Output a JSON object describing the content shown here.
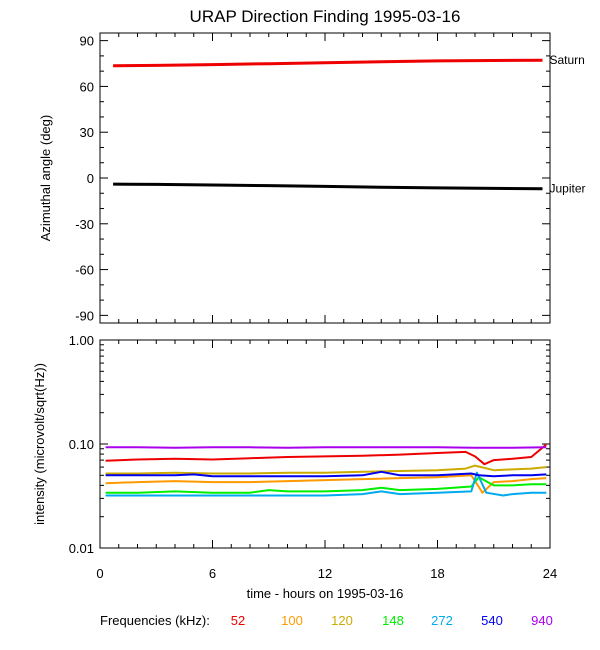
{
  "figure": {
    "title": "URAP Direction Finding  1995-03-16",
    "xlabel": "time - hours on 1995-03-16",
    "x_ticks": [
      "0",
      "6",
      "12",
      "18",
      "24"
    ],
    "frequency_legend_label": "Frequencies (kHz):"
  },
  "chart_data": [
    {
      "type": "line",
      "title": "URAP Direction Finding  1995-03-16",
      "xlabel": "time - hours on 1995-03-16",
      "ylabel": "Azimuthal angle (deg)",
      "xlim": [
        0,
        24
      ],
      "ylim": [
        -95,
        95
      ],
      "x_ticks": [
        0,
        6,
        12,
        18,
        24
      ],
      "y_ticks": [
        90,
        60,
        30,
        0,
        -30,
        -60,
        -90
      ],
      "y_tick_labels": [
        "90",
        "60",
        "30",
        "0",
        "-30",
        "-60",
        "-90"
      ],
      "grid": false,
      "series": [
        {
          "name": "Saturn",
          "color": "#ee0000",
          "x": [
            0.7,
            3,
            6,
            9,
            12,
            15,
            18,
            21,
            23.6
          ],
          "y": [
            73.5,
            73.8,
            74.3,
            74.9,
            75.5,
            76.1,
            76.7,
            77.0,
            77.2
          ]
        },
        {
          "name": "Jupiter",
          "color": "#000000",
          "x": [
            0.7,
            3,
            6,
            9,
            12,
            15,
            18,
            21,
            23.6
          ],
          "y": [
            -4.0,
            -4.2,
            -4.6,
            -5.0,
            -5.5,
            -6.0,
            -6.5,
            -6.8,
            -7.0
          ]
        }
      ]
    },
    {
      "type": "line",
      "title": "",
      "xlabel": "time - hours on 1995-03-16",
      "ylabel": "intensity (microvolt/sqrt(Hz))",
      "scale": "log",
      "xlim": [
        0,
        24
      ],
      "ylim": [
        0.01,
        1.0
      ],
      "x_ticks": [
        0,
        6,
        12,
        18,
        24
      ],
      "x_tick_labels": [
        "0",
        "6",
        "12",
        "18",
        "24"
      ],
      "y_ticks": [
        0.01,
        0.1,
        1.0
      ],
      "y_tick_labels": [
        "0.01",
        "0.10",
        "1.00"
      ],
      "grid": false,
      "legend": "bottom",
      "series": [
        {
          "name": "52",
          "color": "#ee0000",
          "x": [
            0.3,
            2,
            4,
            6,
            8,
            10,
            12,
            14,
            16,
            18,
            19.5,
            20,
            20.5,
            21,
            22,
            23,
            23.8
          ],
          "y": [
            0.069,
            0.071,
            0.072,
            0.071,
            0.073,
            0.075,
            0.076,
            0.077,
            0.079,
            0.082,
            0.084,
            0.076,
            0.064,
            0.07,
            0.072,
            0.075,
            0.099
          ]
        },
        {
          "name": "100",
          "color": "#ff9900",
          "x": [
            0.3,
            2,
            4,
            6,
            8,
            10,
            12,
            14,
            16,
            18,
            19.8,
            20.4,
            21,
            22,
            23,
            23.8
          ],
          "y": [
            0.042,
            0.043,
            0.044,
            0.043,
            0.043,
            0.044,
            0.045,
            0.046,
            0.047,
            0.048,
            0.05,
            0.034,
            0.043,
            0.044,
            0.046,
            0.047
          ]
        },
        {
          "name": "120",
          "color": "#ccaa00",
          "x": [
            0.3,
            2,
            4,
            6,
            8,
            10,
            12,
            14,
            16,
            18,
            19.5,
            20,
            21,
            22,
            23,
            23.8
          ],
          "y": [
            0.052,
            0.052,
            0.053,
            0.052,
            0.052,
            0.053,
            0.053,
            0.054,
            0.055,
            0.056,
            0.058,
            0.062,
            0.056,
            0.057,
            0.058,
            0.06
          ]
        },
        {
          "name": "148",
          "color": "#00ee00",
          "x": [
            0.3,
            2,
            4,
            6,
            8,
            9,
            10,
            12,
            14,
            15,
            16,
            18,
            19.8,
            20.2,
            21,
            22,
            23,
            23.8
          ],
          "y": [
            0.034,
            0.034,
            0.035,
            0.034,
            0.034,
            0.036,
            0.035,
            0.035,
            0.036,
            0.038,
            0.036,
            0.037,
            0.039,
            0.048,
            0.04,
            0.04,
            0.041,
            0.041
          ]
        },
        {
          "name": "272",
          "color": "#00aaee",
          "x": [
            0.3,
            2,
            4,
            6,
            8,
            10,
            12,
            14,
            15,
            16,
            18,
            19.8,
            20.1,
            20.6,
            21.5,
            22,
            23,
            23.8
          ],
          "y": [
            0.032,
            0.032,
            0.032,
            0.032,
            0.032,
            0.032,
            0.032,
            0.033,
            0.035,
            0.033,
            0.034,
            0.035,
            0.053,
            0.034,
            0.032,
            0.033,
            0.034,
            0.034
          ]
        },
        {
          "name": "540",
          "color": "#0000ee",
          "x": [
            0.3,
            2,
            4,
            5,
            6,
            8,
            10,
            12,
            14,
            15,
            16,
            18,
            19.8,
            20.2,
            21,
            22,
            23,
            23.8
          ],
          "y": [
            0.05,
            0.05,
            0.05,
            0.051,
            0.049,
            0.049,
            0.049,
            0.049,
            0.05,
            0.054,
            0.05,
            0.05,
            0.052,
            0.05,
            0.049,
            0.05,
            0.05,
            0.051
          ]
        },
        {
          "name": "940",
          "color": "#aa00ee",
          "x": [
            0.3,
            2,
            4,
            6,
            8,
            10,
            12,
            14,
            16,
            18,
            20,
            22,
            23.8
          ],
          "y": [
            0.093,
            0.093,
            0.092,
            0.093,
            0.093,
            0.092,
            0.093,
            0.093,
            0.093,
            0.093,
            0.092,
            0.092,
            0.093
          ]
        }
      ]
    }
  ]
}
